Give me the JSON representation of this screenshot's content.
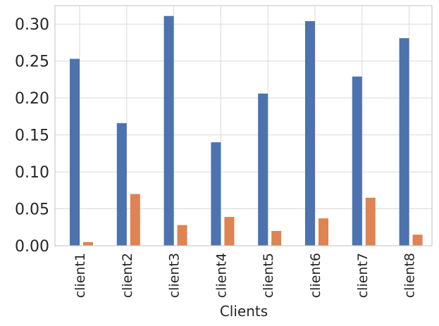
{
  "chart_data": {
    "type": "bar",
    "title": "",
    "xlabel": "Clients",
    "ylabel": "",
    "categories": [
      "client1",
      "client2",
      "client3",
      "client4",
      "client5",
      "client6",
      "client7",
      "client8"
    ],
    "series": [
      {
        "values": [
          0.253,
          0.166,
          0.311,
          0.14,
          0.206,
          0.304,
          0.229,
          0.281
        ],
        "color": "#4c72b0"
      },
      {
        "values": [
          0.005,
          0.07,
          0.028,
          0.039,
          0.02,
          0.037,
          0.065,
          0.015
        ],
        "color": "#dd8452"
      }
    ],
    "ylim": [
      0,
      0.325
    ],
    "yticks": [
      "0.00",
      "0.05",
      "0.10",
      "0.15",
      "0.20",
      "0.25",
      "0.30"
    ],
    "grid": true,
    "legend": "none"
  }
}
